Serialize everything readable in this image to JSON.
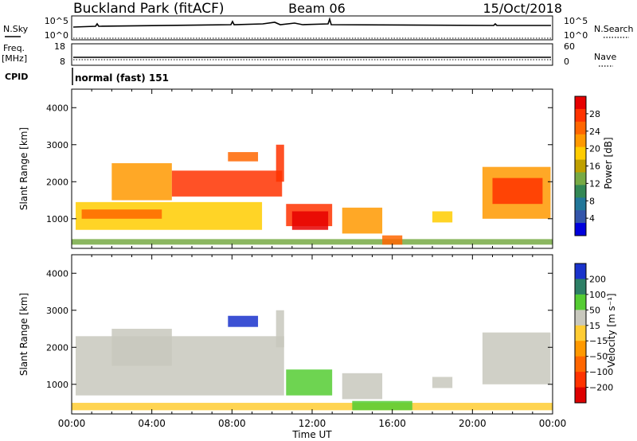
{
  "header": {
    "title": "Buckland Park (fitACF)",
    "beam": "Beam 06",
    "date": "15/Oct/2018"
  },
  "strip_labels": {
    "nsky": "N.Sky",
    "nsky_top": "10^5",
    "nsky_bottom": "10^0",
    "nsearch": "N.Search",
    "nsearch_top": "10^5",
    "nsearch_bottom": "10^0",
    "freq": "Freq.",
    "freq_unit": "[MHz]",
    "freq_top": "18",
    "freq_bottom": "8",
    "nave": "Nave",
    "nave_top": "60",
    "nave_bottom": "0",
    "cpid": "CPID",
    "cpid_value": "normal (fast) 151"
  },
  "xaxis": {
    "label": "Time UT",
    "ticks": [
      "00:00",
      "04:00",
      "08:00",
      "12:00",
      "16:00",
      "20:00",
      "00:00"
    ]
  },
  "power_colorbar": {
    "label": "Power [dB]",
    "ticks": [
      "28",
      "24",
      "20",
      "16",
      "12",
      "8",
      "4"
    ],
    "colors": [
      "#e60000",
      "#ff3300",
      "#ff6600",
      "#ff9900",
      "#ffcc00",
      "#bfa000",
      "#77aa44",
      "#338855",
      "#227799",
      "#3355aa",
      "#0000dd"
    ]
  },
  "velocity_colorbar": {
    "label": "Velocity [m s⁻¹]",
    "ticks": [
      "200",
      "100",
      "50",
      "15",
      "−15",
      "−50",
      "−100",
      "−200"
    ],
    "colors": [
      "#1a33cc",
      "#2d7f66",
      "#55cc33",
      "#c8c8bd",
      "#ffcc33",
      "#ff9900",
      "#ff6600",
      "#ff3300",
      "#dd0000"
    ]
  },
  "chart_data": [
    {
      "type": "heatmap",
      "title": "Power",
      "xlabel": "Time UT",
      "ylabel": "Slant Range [km]",
      "xlim": [
        0,
        24
      ],
      "ylim": [
        200,
        4500
      ],
      "yticks": [
        1000,
        2000,
        3000,
        4000
      ],
      "regions": [
        {
          "t0": 0.0,
          "t1": 24.0,
          "r0": 300,
          "r1": 450,
          "color": "#77aa44"
        },
        {
          "t0": 0.2,
          "t1": 9.5,
          "r0": 700,
          "r1": 1450,
          "color": "#ffcc00"
        },
        {
          "t0": 0.5,
          "t1": 4.5,
          "r0": 1000,
          "r1": 1250,
          "color": "#ff6600"
        },
        {
          "t0": 2.0,
          "t1": 5.0,
          "r0": 1500,
          "r1": 2500,
          "color": "#ff9900"
        },
        {
          "t0": 5.0,
          "t1": 10.5,
          "r0": 1600,
          "r1": 2300,
          "color": "#ff3300"
        },
        {
          "t0": 7.8,
          "t1": 9.3,
          "r0": 2550,
          "r1": 2800,
          "color": "#ff6600"
        },
        {
          "t0": 10.2,
          "t1": 10.6,
          "r0": 2000,
          "r1": 3000,
          "color": "#ff3300"
        },
        {
          "t0": 10.7,
          "t1": 13.0,
          "r0": 800,
          "r1": 1400,
          "color": "#ff3300"
        },
        {
          "t0": 11.0,
          "t1": 12.8,
          "r0": 700,
          "r1": 1200,
          "color": "#e60000"
        },
        {
          "t0": 13.5,
          "t1": 15.5,
          "r0": 600,
          "r1": 1300,
          "color": "#ff9900"
        },
        {
          "t0": 15.5,
          "t1": 16.5,
          "r0": 300,
          "r1": 550,
          "color": "#ff6600"
        },
        {
          "t0": 18.0,
          "t1": 19.0,
          "r0": 900,
          "r1": 1200,
          "color": "#ffcc00"
        },
        {
          "t0": 20.5,
          "t1": 23.9,
          "r0": 1000,
          "r1": 2400,
          "color": "#ff9900"
        },
        {
          "t0": 21.0,
          "t1": 23.5,
          "r0": 1400,
          "r1": 2100,
          "color": "#ff3300"
        }
      ]
    },
    {
      "type": "heatmap",
      "title": "Velocity",
      "xlabel": "Time UT",
      "ylabel": "Slant Range [km]",
      "xlim": [
        0,
        24
      ],
      "ylim": [
        200,
        4500
      ],
      "yticks": [
        1000,
        2000,
        3000,
        4000
      ],
      "regions": [
        {
          "t0": 0.0,
          "t1": 24.0,
          "r0": 300,
          "r1": 500,
          "color": "#ffcc33"
        },
        {
          "t0": 0.2,
          "t1": 10.6,
          "r0": 700,
          "r1": 2300,
          "color": "#c8c8bd"
        },
        {
          "t0": 2.0,
          "t1": 5.0,
          "r0": 1500,
          "r1": 2500,
          "color": "#c8c8bd"
        },
        {
          "t0": 7.8,
          "t1": 9.3,
          "r0": 2550,
          "r1": 2850,
          "color": "#1a33cc"
        },
        {
          "t0": 10.2,
          "t1": 10.6,
          "r0": 2000,
          "r1": 3000,
          "color": "#c8c8bd"
        },
        {
          "t0": 10.7,
          "t1": 13.0,
          "r0": 700,
          "r1": 1400,
          "color": "#55cc33"
        },
        {
          "t0": 13.5,
          "t1": 15.5,
          "r0": 600,
          "r1": 1300,
          "color": "#c8c8bd"
        },
        {
          "t0": 14.0,
          "t1": 17.0,
          "r0": 300,
          "r1": 550,
          "color": "#55cc33"
        },
        {
          "t0": 18.0,
          "t1": 19.0,
          "r0": 900,
          "r1": 1200,
          "color": "#c8c8bd"
        },
        {
          "t0": 20.5,
          "t1": 23.9,
          "r0": 1000,
          "r1": 2400,
          "color": "#c8c8bd"
        }
      ]
    }
  ]
}
